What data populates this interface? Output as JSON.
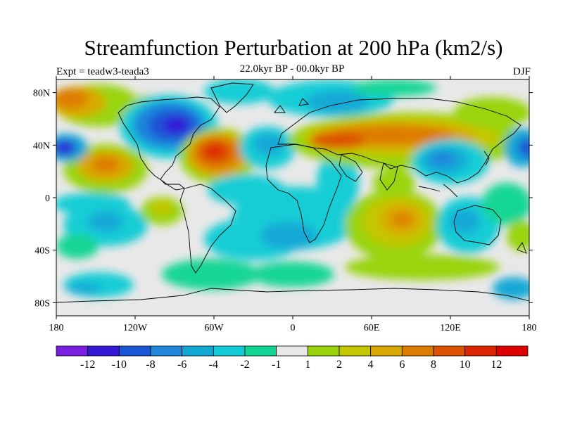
{
  "title": "Streamfunction Perturbation at 200 hPa (km2/s)",
  "subtitle_left": "Expt = teadw3-teada3",
  "subtitle_center": "22.0kyr BP - 00.0kyr BP",
  "subtitle_right": "DJF",
  "lat_labels": [
    "80N",
    "40N",
    "0",
    "40S",
    "80S"
  ],
  "lon_labels": [
    "180",
    "120W",
    "60W",
    "0",
    "60E",
    "120E",
    "180"
  ],
  "colorbar": {
    "labels": [
      "-12",
      "-10",
      "-8",
      "-6",
      "-4",
      "-2",
      "-1",
      "1",
      "2",
      "4",
      "6",
      "8",
      "10",
      "12"
    ],
    "colors": [
      "#7a1ee0",
      "#3318d6",
      "#1a55d6",
      "#1e86db",
      "#12a9d6",
      "#12cdd6",
      "#12d696",
      "#e8e8e8",
      "#99d40a",
      "#c4c600",
      "#d9a800",
      "#dd7d00",
      "#dd5200",
      "#dd2400",
      "#dd0000"
    ]
  },
  "chart_data": {
    "type": "heatmap",
    "title": "Streamfunction Perturbation at 200 hPa (km2/s)",
    "season": "DJF",
    "experiment": "teadw3-teada3",
    "period": "22.0kyr BP - 00.0kyr BP",
    "x_range": [
      -180,
      180
    ],
    "y_range": [
      -90,
      90
    ],
    "levels": [
      -12,
      -10,
      -8,
      -6,
      -4,
      -2,
      -1,
      1,
      2,
      4,
      6,
      8,
      10,
      12
    ],
    "features": [
      {
        "lon": -60,
        "lat": 33,
        "value": 11
      },
      {
        "lon": -95,
        "lat": 58,
        "value": -9
      },
      {
        "lon": -175,
        "lat": 37,
        "value": -10
      },
      {
        "lon": -140,
        "lat": 25,
        "value": 6
      },
      {
        "lon": 80,
        "lat": 50,
        "value": 7
      },
      {
        "lon": 110,
        "lat": 28,
        "value": -6
      },
      {
        "lon": 82,
        "lat": -18,
        "value": 5
      },
      {
        "lon": -170,
        "lat": 80,
        "value": 6
      },
      {
        "lon": -30,
        "lat": 40,
        "value": -5
      },
      {
        "lon": 35,
        "lat": 75,
        "value": -4
      }
    ]
  }
}
